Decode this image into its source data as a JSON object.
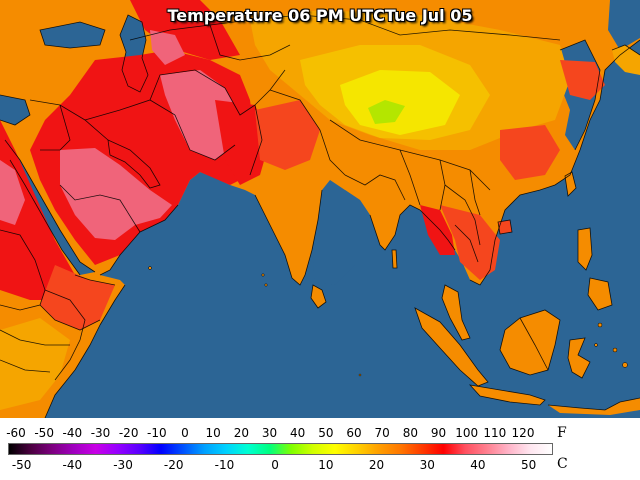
{
  "title": "Temperature 06 PM UTCTue Jul 05",
  "legend": {
    "fahrenheit_unit": "F",
    "celsius_unit": "C",
    "fahrenheit_ticks": [
      "-60",
      "-50",
      "-40",
      "-30",
      "-20",
      "-10",
      "0",
      "10",
      "20",
      "30",
      "40",
      "50",
      "60",
      "70",
      "80",
      "90",
      "100",
      "110",
      "120"
    ],
    "celsius_ticks": [
      "-50",
      "-40",
      "-30",
      "-20",
      "-10",
      "0",
      "10",
      "20",
      "30",
      "40",
      "50"
    ],
    "color_stops": [
      "#000000",
      "#4b0040",
      "#7d0080",
      "#a000c0",
      "#c800e6",
      "#9600ff",
      "#5a00ff",
      "#0000ff",
      "#0050ff",
      "#00a0ff",
      "#00d2ff",
      "#00ffd2",
      "#00ff80",
      "#80ff00",
      "#d2ff00",
      "#ffff00",
      "#ffd200",
      "#ffa000",
      "#ff7800",
      "#ff3c00",
      "#ff0000",
      "#ff5060",
      "#ff8090",
      "#ffb4c8",
      "#ffe6f0",
      "#ffffff"
    ]
  },
  "palette": {
    "ocean": "#2c6595",
    "hot_pink": "#f0647a",
    "red": "#f01414",
    "red_orange": "#f5461e",
    "orange": "#f58c00",
    "light_orange": "#f5a500",
    "amber": "#f5c000",
    "yellow": "#f5e600",
    "lime": "#b4e600"
  }
}
